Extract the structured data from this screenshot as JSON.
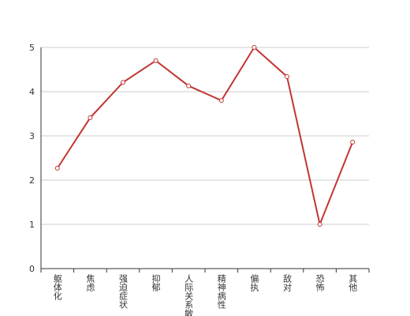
{
  "chart_data": {
    "type": "line",
    "categories": [
      "躯体化",
      "焦虑",
      "强迫症状",
      "抑郁",
      "人际关系敏感",
      "精神病性",
      "偏执",
      "敌对",
      "恐怖",
      "其他"
    ],
    "values": [
      2.27,
      3.41,
      4.21,
      4.7,
      4.13,
      3.8,
      5.0,
      4.34,
      1.0,
      2.86
    ],
    "color": "#c23531",
    "ylim": [
      0,
      5
    ],
    "yticks": [
      0,
      1,
      2,
      3,
      4,
      5
    ],
    "grid": true
  }
}
